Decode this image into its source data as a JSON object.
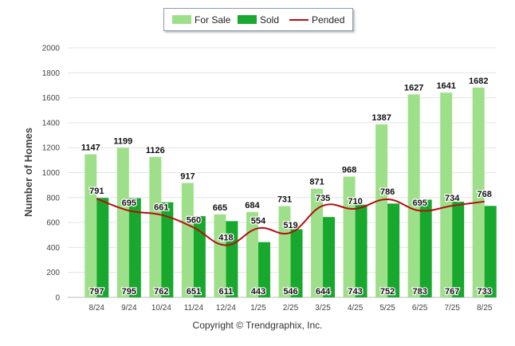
{
  "chart_data": {
    "type": "bar",
    "ylabel": "Number of Homes",
    "ylim": [
      0,
      2000
    ],
    "yticks": [
      0,
      200,
      400,
      600,
      800,
      1000,
      1200,
      1400,
      1600,
      1800,
      2000
    ],
    "categories": [
      "8/24",
      "9/24",
      "10/24",
      "11/24",
      "12/24",
      "1/25",
      "2/25",
      "3/25",
      "4/25",
      "5/25",
      "6/25",
      "7/25",
      "8/25"
    ],
    "series": [
      {
        "name": "For Sale",
        "kind": "bar",
        "color": "#9ee08a",
        "values": [
          1147,
          1199,
          1126,
          917,
          665,
          684,
          731,
          871,
          968,
          1387,
          1627,
          1641,
          1682
        ]
      },
      {
        "name": "Sold",
        "kind": "bar",
        "color": "#18a82e",
        "values": [
          797,
          795,
          762,
          651,
          611,
          443,
          546,
          644,
          743,
          752,
          783,
          767,
          733
        ]
      },
      {
        "name": "Pended",
        "kind": "line",
        "color": "#b30f0f",
        "values": [
          791,
          695,
          661,
          560,
          418,
          554,
          519,
          735,
          710,
          786,
          695,
          734,
          768
        ]
      }
    ],
    "grid": true,
    "legend": "top"
  },
  "footer": "Copyright © Trendgraphix, Inc."
}
